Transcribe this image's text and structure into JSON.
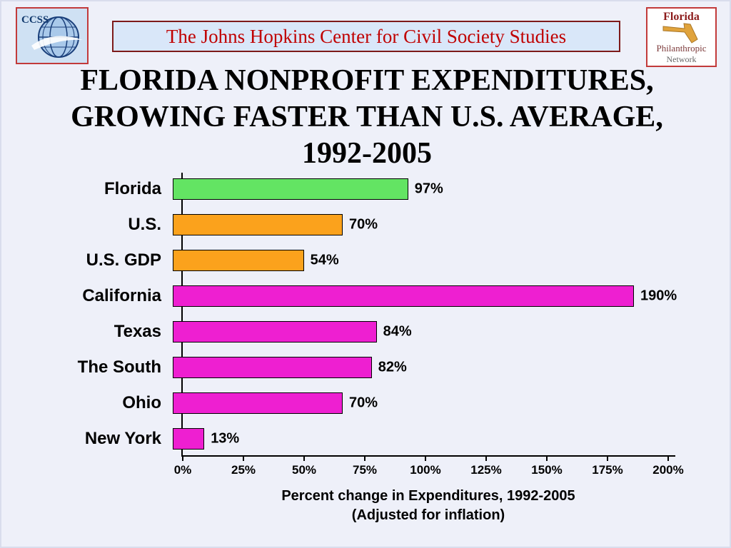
{
  "header": {
    "banner_text": "The Johns Hopkins Center for Civil Society Studies",
    "banner_color": "#c00000",
    "ccss_logo_text": "CCSS",
    "fpn_logo": {
      "line1": "Florida",
      "line2": "Philanthropic",
      "line3": "Network"
    }
  },
  "title": {
    "line1": "FLORIDA NONPROFIT EXPENDITURES,",
    "line2": "GROWING FASTER THAN U.S. AVERAGE,",
    "line3": "1992-2005"
  },
  "chart_data": {
    "type": "bar",
    "orientation": "horizontal",
    "categories": [
      "Florida",
      "U.S.",
      "U.S. GDP",
      "California",
      "Texas",
      "The South",
      "Ohio",
      "New York"
    ],
    "values": [
      97,
      70,
      54,
      190,
      84,
      82,
      70,
      13
    ],
    "value_labels": [
      "97%",
      "70%",
      "54%",
      "190%",
      "84%",
      "82%",
      "70%",
      "13%"
    ],
    "bar_colors": [
      "#63e463",
      "#fba21c",
      "#fba21c",
      "#ee1fd1",
      "#ee1fd1",
      "#ee1fd1",
      "#ee1fd1",
      "#ee1fd1"
    ],
    "xlim": [
      0,
      200
    ],
    "x_tick_values": [
      0,
      25,
      50,
      75,
      100,
      125,
      150,
      175,
      200
    ],
    "x_ticks": [
      "0%",
      "25%",
      "50%",
      "75%",
      "100%",
      "125%",
      "150%",
      "175%",
      "200%"
    ],
    "xlabel_line1": "Percent change in Expenditures, 1992-2005",
    "xlabel_line2": "(Adjusted for inflation)",
    "grid": false,
    "legend": false
  }
}
